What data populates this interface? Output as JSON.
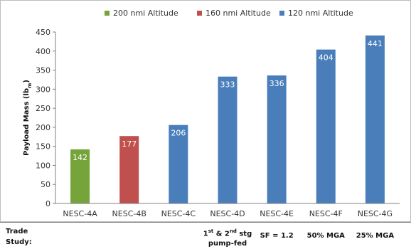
{
  "chart_data": {
    "type": "bar",
    "categories": [
      "NESC-4A",
      "NESC-4B",
      "NESC-4C",
      "NESC-4D",
      "NESC-4E",
      "NESC-4F",
      "NESC-4G"
    ],
    "values": [
      142,
      177,
      206,
      333,
      336,
      404,
      441
    ],
    "series_of_bar": [
      0,
      1,
      2,
      2,
      2,
      2,
      2
    ],
    "legend": [
      {
        "name": "200 nmi Altitude",
        "color": "#77a33b"
      },
      {
        "name": "160 nmi Altitude",
        "color": "#c0504d"
      },
      {
        "name": "120 nmi Altitude",
        "color": "#4a7ebb"
      }
    ],
    "ylabel": "Payload Mass (lbm)",
    "ylim": [
      0,
      450
    ],
    "yticks": [
      0,
      50,
      100,
      150,
      200,
      250,
      300,
      350,
      400,
      450
    ],
    "grid": false,
    "legend_position": "top"
  },
  "trade_study": {
    "title": "Trade\nStudy:",
    "notes": [
      "",
      "",
      "",
      "1st & 2nd stg\npump-fed",
      "SF = 1.2",
      "50% MGA",
      "25% MGA"
    ]
  }
}
